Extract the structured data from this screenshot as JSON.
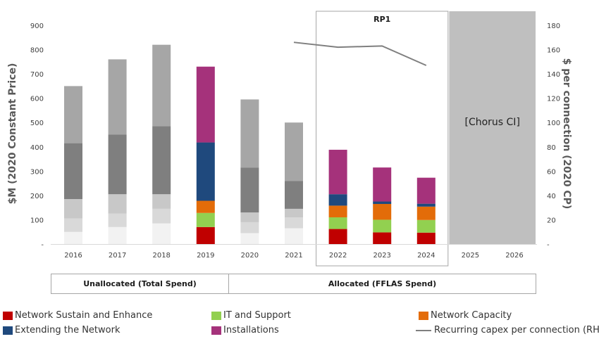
{
  "colors": {
    "network_sustain": "#c00000",
    "it_support": "#92d050",
    "network_capacity": "#e36c09",
    "extending_network": "#1f497d",
    "installations": "#a5327b",
    "line": "#7f7f7f",
    "placeholder": "#bfbfbf",
    "grey_shades": [
      "#f2f2f2",
      "#d9d9d9",
      "#c8c8c8",
      "#7f7f7f",
      "#a6a6a6"
    ]
  },
  "chart_data": {
    "type": "bar",
    "stacked": true,
    "categories": [
      "2016",
      "2017",
      "2018",
      "2019",
      "2020",
      "2021",
      "2022",
      "2023",
      "2024",
      "2025",
      "2026"
    ],
    "ylabel": "$M (2020 Constant Price)",
    "y2label": "$ per connection (2020 CP)",
    "ylim": [
      0,
      900
    ],
    "y2lim": [
      0,
      180
    ],
    "y_ticks": [
      "-",
      "100",
      "200",
      "300",
      "400",
      "500",
      "600",
      "700",
      "800",
      "900"
    ],
    "y2_ticks": [
      "-",
      "20",
      "40",
      "60",
      "80",
      "100",
      "120",
      "140",
      "160",
      "180"
    ],
    "unallocated_series": [
      {
        "values": [
          50,
          70,
          85,
          0,
          45,
          65,
          0,
          0,
          0,
          0,
          0
        ]
      },
      {
        "values": [
          55,
          55,
          60,
          0,
          45,
          45,
          0,
          0,
          0,
          0,
          0
        ]
      },
      {
        "values": [
          80,
          80,
          60,
          0,
          40,
          35,
          0,
          0,
          0,
          0,
          0
        ]
      },
      {
        "values": [
          230,
          245,
          280,
          0,
          185,
          115,
          0,
          0,
          0,
          0,
          0
        ]
      },
      {
        "values": [
          235,
          310,
          335,
          0,
          280,
          240,
          0,
          0,
          0,
          0,
          0
        ]
      }
    ],
    "series": [
      {
        "name": "Network Sustain and Enhance",
        "values": [
          0,
          0,
          0,
          70,
          0,
          0,
          62,
          48,
          47,
          0,
          0
        ]
      },
      {
        "name": "IT and Support",
        "values": [
          0,
          0,
          0,
          58,
          0,
          0,
          48,
          52,
          52,
          0,
          0
        ]
      },
      {
        "name": "Network Capacity",
        "values": [
          0,
          0,
          0,
          50,
          0,
          0,
          48,
          65,
          55,
          0,
          0
        ]
      },
      {
        "name": "Extending the Network",
        "values": [
          0,
          0,
          0,
          240,
          0,
          0,
          47,
          10,
          12,
          0,
          0
        ]
      },
      {
        "name": "Installations",
        "values": [
          0,
          0,
          0,
          312,
          0,
          0,
          183,
          140,
          107,
          0,
          0
        ]
      }
    ],
    "line_series": {
      "name": "Recurring capex per connection (RHS)",
      "x": [
        "2021",
        "2022",
        "2023",
        "2024"
      ],
      "values": [
        166,
        162,
        163,
        147
      ]
    },
    "rp1_label": "RP1",
    "rp1_categories": [
      "2022",
      "2024"
    ],
    "placeholder_label": "[Chorus CI]",
    "placeholder_categories": [
      "2025",
      "2026"
    ],
    "category_groups": [
      {
        "label": "Unallocated (Total Spend)"
      },
      {
        "label": "Allocated (FFLAS Spend)"
      }
    ]
  }
}
